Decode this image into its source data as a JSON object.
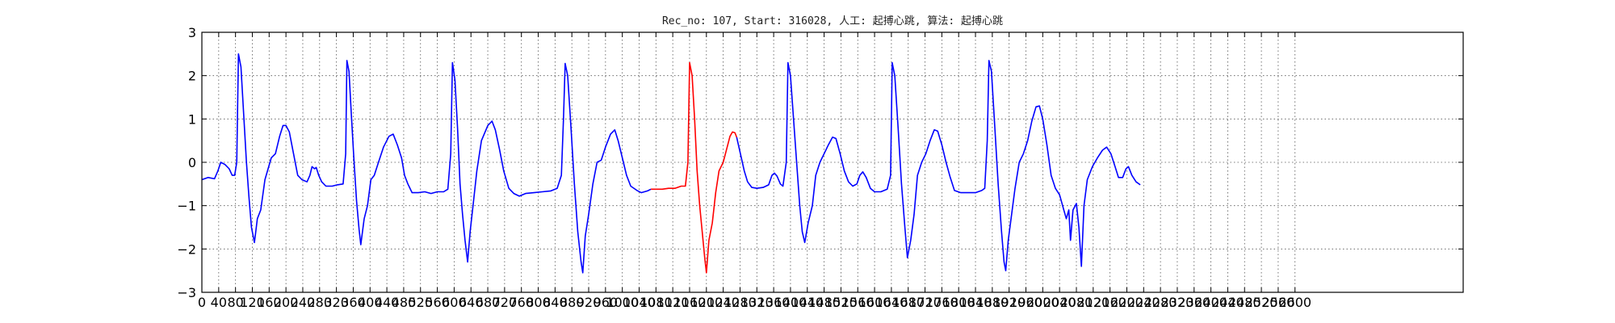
{
  "chart_data": {
    "type": "line",
    "title": "Rec_no: 107, Start: 316028, 人工: 起搏心跳, 算法: 起搏心跳",
    "xlabel": "",
    "ylabel": "",
    "xlim": [
      0,
      3000
    ],
    "ylim": [
      -3,
      3
    ],
    "grid": true,
    "x_ticks": [
      0,
      40,
      80,
      120,
      160,
      200,
      240,
      280,
      320,
      360,
      400,
      440,
      480,
      520,
      560,
      600,
      640,
      680,
      720,
      760,
      800,
      840,
      880,
      920,
      960,
      1000,
      1040,
      1080,
      1120,
      1160,
      1200,
      1240,
      1280,
      1320,
      1360,
      1400,
      1440,
      1480,
      1520,
      1560,
      1600,
      1640,
      1680,
      1720,
      1760,
      1800,
      1840,
      1880,
      1920,
      1960,
      2000,
      2040,
      2080,
      2120,
      2160,
      2200,
      2240,
      2280,
      2320,
      2360,
      2400,
      2440,
      2480,
      2520,
      2560,
      2600
    ],
    "x_tick_labels": [
      "0",
      "40",
      "80",
      "120",
      "160",
      "200",
      "240",
      "280",
      "320",
      "360",
      "400",
      "440",
      "480",
      "520",
      "560",
      "600",
      "640",
      "680",
      "720",
      "760",
      "800",
      "840",
      "880",
      "920",
      "960",
      "1000",
      "1040",
      "1080",
      "1120",
      "1160",
      "1200",
      "1240",
      "1280",
      "1320",
      "1360",
      "1400",
      "1440",
      "1480",
      "1520",
      "1560",
      "1600",
      "1640",
      "1680",
      "1720",
      "1760",
      "1800",
      "1840",
      "1880",
      "1920",
      "1960",
      "2000",
      "2040",
      "2080",
      "2120",
      "2160",
      "2200",
      "2240",
      "2280",
      "2320",
      "2360",
      "2400",
      "2440",
      "2480",
      "2520",
      "2560",
      "2600"
    ],
    "y_ticks": [
      -3,
      -2,
      -1,
      0,
      1,
      2,
      3
    ],
    "y_tick_labels": [
      "−3",
      "−2",
      "−1",
      "0",
      "1",
      "2",
      "3"
    ],
    "series": [
      {
        "color": "#0000ff",
        "points": [
          [
            0,
            -0.4
          ],
          [
            15,
            -0.35
          ],
          [
            30,
            -0.38
          ],
          [
            38,
            -0.2
          ],
          [
            45,
            0.0
          ],
          [
            55,
            -0.05
          ],
          [
            65,
            -0.15
          ],
          [
            72,
            -0.3
          ],
          [
            78,
            -0.3
          ],
          [
            83,
            0.0
          ],
          [
            87,
            2.5
          ],
          [
            93,
            2.2
          ],
          [
            100,
            1.0
          ],
          [
            106,
            0.0
          ],
          [
            112,
            -0.8
          ],
          [
            118,
            -1.5
          ],
          [
            125,
            -1.85
          ],
          [
            132,
            -1.3
          ],
          [
            140,
            -1.1
          ],
          [
            150,
            -0.4
          ],
          [
            165,
            0.1
          ],
          [
            175,
            0.2
          ],
          [
            185,
            0.6
          ],
          [
            193,
            0.85
          ],
          [
            200,
            0.85
          ],
          [
            208,
            0.7
          ],
          [
            218,
            0.2
          ],
          [
            228,
            -0.3
          ],
          [
            238,
            -0.4
          ],
          [
            250,
            -0.45
          ],
          [
            257,
            -0.3
          ],
          [
            262,
            -0.1
          ],
          [
            268,
            -0.15
          ],
          [
            272,
            -0.12
          ],
          [
            278,
            -0.3
          ],
          [
            285,
            -0.45
          ],
          [
            295,
            -0.55
          ],
          [
            310,
            -0.55
          ],
          [
            322,
            -0.52
          ],
          [
            336,
            -0.5
          ],
          [
            342,
            0.2
          ],
          [
            345,
            2.35
          ],
          [
            350,
            2.1
          ],
          [
            356,
            1.0
          ],
          [
            362,
            0.0
          ],
          [
            368,
            -0.9
          ],
          [
            374,
            -1.55
          ],
          [
            378,
            -1.9
          ],
          [
            386,
            -1.3
          ],
          [
            394,
            -1.0
          ],
          [
            402,
            -0.4
          ],
          [
            410,
            -0.3
          ],
          [
            420,
            0.0
          ],
          [
            432,
            0.35
          ],
          [
            445,
            0.6
          ],
          [
            455,
            0.65
          ],
          [
            465,
            0.4
          ],
          [
            475,
            0.1
          ],
          [
            482,
            -0.3
          ],
          [
            490,
            -0.5
          ],
          [
            500,
            -0.7
          ],
          [
            515,
            -0.7
          ],
          [
            530,
            -0.68
          ],
          [
            545,
            -0.72
          ],
          [
            560,
            -0.68
          ],
          [
            575,
            -0.68
          ],
          [
            585,
            -0.62
          ],
          [
            592,
            0.2
          ],
          [
            596,
            2.3
          ],
          [
            602,
            1.9
          ],
          [
            608,
            0.8
          ],
          [
            614,
            -0.5
          ],
          [
            620,
            -1.2
          ],
          [
            626,
            -1.8
          ],
          [
            632,
            -2.3
          ],
          [
            638,
            -1.6
          ],
          [
            646,
            -0.9
          ],
          [
            654,
            -0.2
          ],
          [
            665,
            0.5
          ],
          [
            680,
            0.85
          ],
          [
            690,
            0.95
          ],
          [
            698,
            0.75
          ],
          [
            708,
            0.3
          ],
          [
            718,
            -0.2
          ],
          [
            730,
            -0.6
          ],
          [
            742,
            -0.72
          ],
          [
            755,
            -0.78
          ],
          [
            770,
            -0.72
          ],
          [
            790,
            -0.7
          ],
          [
            810,
            -0.68
          ],
          [
            830,
            -0.66
          ],
          [
            845,
            -0.6
          ],
          [
            855,
            -0.3
          ],
          [
            860,
            1.0
          ],
          [
            864,
            2.28
          ],
          [
            870,
            2.0
          ],
          [
            878,
            0.8
          ],
          [
            886,
            -0.5
          ],
          [
            894,
            -1.6
          ],
          [
            902,
            -2.3
          ],
          [
            906,
            -2.55
          ],
          [
            912,
            -1.7
          ],
          [
            920,
            -1.2
          ],
          [
            930,
            -0.5
          ],
          [
            940,
            0.0
          ],
          [
            950,
            0.05
          ],
          [
            960,
            0.35
          ],
          [
            972,
            0.65
          ],
          [
            982,
            0.75
          ],
          [
            990,
            0.5
          ],
          [
            1000,
            0.1
          ],
          [
            1010,
            -0.3
          ],
          [
            1020,
            -0.55
          ],
          [
            1035,
            -0.65
          ],
          [
            1045,
            -0.7
          ],
          [
            1060,
            -0.66
          ],
          [
            1068,
            -0.62
          ]
        ]
      },
      {
        "color": "#ff0000",
        "points": [
          [
            1068,
            -0.62
          ],
          [
            1080,
            -0.62
          ],
          [
            1095,
            -0.62
          ],
          [
            1110,
            -0.6
          ],
          [
            1125,
            -0.6
          ],
          [
            1140,
            -0.55
          ],
          [
            1150,
            -0.55
          ],
          [
            1156,
            0.0
          ],
          [
            1160,
            2.3
          ],
          [
            1166,
            2.0
          ],
          [
            1172,
            1.0
          ],
          [
            1178,
            -0.2
          ],
          [
            1184,
            -1.0
          ],
          [
            1190,
            -1.6
          ],
          [
            1196,
            -2.2
          ],
          [
            1200,
            -2.55
          ],
          [
            1206,
            -1.8
          ],
          [
            1214,
            -1.4
          ],
          [
            1222,
            -0.7
          ],
          [
            1230,
            -0.2
          ],
          [
            1240,
            0.0
          ],
          [
            1248,
            0.3
          ],
          [
            1256,
            0.6
          ],
          [
            1262,
            0.7
          ],
          [
            1268,
            0.68
          ],
          [
            1272,
            0.58
          ]
        ]
      },
      {
        "color": "#0000ff",
        "points": [
          [
            1272,
            0.58
          ],
          [
            1282,
            0.15
          ],
          [
            1290,
            -0.2
          ],
          [
            1298,
            -0.45
          ],
          [
            1308,
            -0.58
          ],
          [
            1320,
            -0.6
          ],
          [
            1335,
            -0.58
          ],
          [
            1348,
            -0.52
          ],
          [
            1356,
            -0.3
          ],
          [
            1362,
            -0.25
          ],
          [
            1368,
            -0.32
          ],
          [
            1376,
            -0.5
          ],
          [
            1382,
            -0.55
          ],
          [
            1390,
            0.0
          ],
          [
            1394,
            2.3
          ],
          [
            1400,
            2.0
          ],
          [
            1408,
            0.9
          ],
          [
            1416,
            -0.2
          ],
          [
            1422,
            -1.0
          ],
          [
            1428,
            -1.6
          ],
          [
            1434,
            -1.85
          ],
          [
            1442,
            -1.4
          ],
          [
            1452,
            -1.0
          ],
          [
            1460,
            -0.3
          ],
          [
            1470,
            0.0
          ],
          [
            1480,
            0.2
          ],
          [
            1490,
            0.4
          ],
          [
            1500,
            0.58
          ],
          [
            1508,
            0.55
          ],
          [
            1518,
            0.2
          ],
          [
            1528,
            -0.2
          ],
          [
            1538,
            -0.45
          ],
          [
            1548,
            -0.55
          ],
          [
            1558,
            -0.5
          ],
          [
            1565,
            -0.3
          ],
          [
            1572,
            -0.22
          ],
          [
            1580,
            -0.35
          ],
          [
            1590,
            -0.6
          ],
          [
            1600,
            -0.68
          ],
          [
            1615,
            -0.68
          ],
          [
            1630,
            -0.62
          ],
          [
            1638,
            -0.3
          ],
          [
            1642,
            2.3
          ],
          [
            1648,
            2.0
          ],
          [
            1656,
            0.8
          ],
          [
            1664,
            -0.5
          ],
          [
            1672,
            -1.5
          ],
          [
            1678,
            -2.2
          ],
          [
            1686,
            -1.8
          ],
          [
            1694,
            -1.2
          ],
          [
            1702,
            -0.3
          ],
          [
            1712,
            0.0
          ],
          [
            1722,
            0.2
          ],
          [
            1732,
            0.5
          ],
          [
            1742,
            0.75
          ],
          [
            1750,
            0.72
          ],
          [
            1760,
            0.4
          ],
          [
            1770,
            0.0
          ],
          [
            1780,
            -0.35
          ],
          [
            1790,
            -0.65
          ],
          [
            1805,
            -0.7
          ],
          [
            1820,
            -0.7
          ],
          [
            1840,
            -0.7
          ],
          [
            1855,
            -0.65
          ],
          [
            1862,
            -0.6
          ],
          [
            1868,
            0.5
          ],
          [
            1872,
            2.35
          ],
          [
            1878,
            2.1
          ],
          [
            1886,
            0.8
          ],
          [
            1894,
            -0.5
          ],
          [
            1902,
            -1.6
          ],
          [
            1908,
            -2.3
          ],
          [
            1912,
            -2.5
          ],
          [
            1918,
            -1.8
          ],
          [
            1926,
            -1.2
          ],
          [
            1934,
            -0.6
          ],
          [
            1944,
            0.0
          ],
          [
            1954,
            0.2
          ],
          [
            1964,
            0.5
          ],
          [
            1974,
            0.95
          ],
          [
            1984,
            1.28
          ],
          [
            1992,
            1.3
          ],
          [
            2000,
            1.0
          ],
          [
            2010,
            0.4
          ],
          [
            2020,
            -0.3
          ],
          [
            2030,
            -0.6
          ],
          [
            2040,
            -0.75
          ],
          [
            2050,
            -1.1
          ],
          [
            2056,
            -1.3
          ],
          [
            2062,
            -1.1
          ],
          [
            2066,
            -1.8
          ],
          [
            2072,
            -1.1
          ],
          [
            2080,
            -0.95
          ],
          [
            2086,
            -1.5
          ],
          [
            2092,
            -2.4
          ],
          [
            2098,
            -1.0
          ],
          [
            2106,
            -0.4
          ],
          [
            2118,
            -0.1
          ],
          [
            2130,
            0.1
          ],
          [
            2142,
            0.28
          ],
          [
            2152,
            0.35
          ],
          [
            2162,
            0.2
          ],
          [
            2172,
            -0.1
          ],
          [
            2180,
            -0.35
          ],
          [
            2190,
            -0.35
          ],
          [
            2198,
            -0.15
          ],
          [
            2204,
            -0.1
          ],
          [
            2212,
            -0.3
          ],
          [
            2222,
            -0.45
          ],
          [
            2232,
            -0.52
          ]
        ]
      }
    ]
  }
}
